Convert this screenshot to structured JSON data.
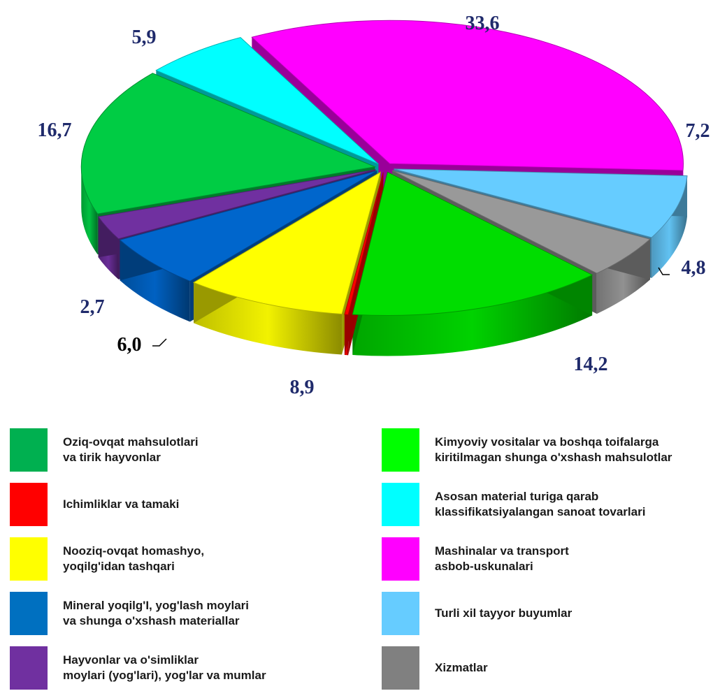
{
  "chart_data": {
    "type": "pie",
    "title": "",
    "slices": [
      {
        "value": 33.6,
        "label": "33,6",
        "category": "Mashinalar va transport\nasbob-uskunalari",
        "color": "#FF00FF"
      },
      {
        "value": 7.2,
        "label": "7,2",
        "category": "Turli xil tayyor buyumlar",
        "color": "#66CCFF"
      },
      {
        "value": 4.8,
        "label": "4,8",
        "category": "Xizmatlar",
        "color": "#999999"
      },
      {
        "value": 14.2,
        "label": "14,2",
        "category": "Kimyoviy vositalar va boshqa toifalarga\nkiritilmagan shunga o'xshash mahsulotlar",
        "color": "#00DD00"
      },
      {
        "value": 0.2,
        "label": "",
        "category": "Ichimliklar va tamaki",
        "color": "#FF0000"
      },
      {
        "value": 8.9,
        "label": "8,9",
        "category": "Nooziq-ovqat homashyo,\nyoqilg'idan tashqari",
        "color": "#FFFF00"
      },
      {
        "value": 6.0,
        "label": "6,0",
        "category": "Mineral yoqilg'i, yog'lash moylari\nva shunga o'xshash materiallar",
        "color": "#0066CC"
      },
      {
        "value": 2.7,
        "label": "2,7",
        "category": "Hayvonlar va o'simliklar\nmoylari (yog'lari), yog'lar va mumlar",
        "color": "#7030A0"
      },
      {
        "value": 16.7,
        "label": "16,7",
        "category": "Kimyoviy vositalar va boshqa toifalarga\nkiritilmagan shunga o'xshash mahsulotlar",
        "color": "#00CC44"
      },
      {
        "value": 5.9,
        "label": "5,9",
        "category": "Asosan material turiga qarab\nklassifikatsiyalangan sanoat tovarlari",
        "color": "#00FFFF"
      }
    ],
    "legend_placement": "bottom",
    "label_color": "#1F2A6B",
    "label_color_dark": "#000000"
  },
  "legend": {
    "left": [
      {
        "text": "Oziq-ovqat mahsulotlari\nva tirik hayvonlar",
        "color": "#00B050"
      },
      {
        "text": "Ichimliklar  va tamaki",
        "color": "#FF0000"
      },
      {
        "text": "Nooziq-ovqat homashyo,\nyoqilg'idan tashqari",
        "color": "#FFFF00"
      },
      {
        "text": "Mineral yoqilg'I,  yog'lash moylari\nva shunga o'xshash materiallar",
        "color": "#0070C0"
      },
      {
        "text": "Hayvonlar va o'simliklar\nmoylari (yog'lari), yog'lar va mumlar",
        "color": "#7030A0"
      }
    ],
    "right": [
      {
        "text": "Kimyoviy vositalar va boshqa toifalarga\nkiritilmagan shunga o'xshash mahsulotlar",
        "color": "#00FF00"
      },
      {
        "text": "Asosan material turiga qarab\nklassifikatsiyalangan  sanoat tovarlari",
        "color": "#00FFFF"
      },
      {
        "text": "Mashinalar va transport\nasbob-uskunalari",
        "color": "#FF00FF"
      },
      {
        "text": "Turli xil tayyor buyumlar",
        "color": "#66CCFF"
      },
      {
        "text": "Xizmatlar",
        "color": "#808080"
      }
    ]
  }
}
